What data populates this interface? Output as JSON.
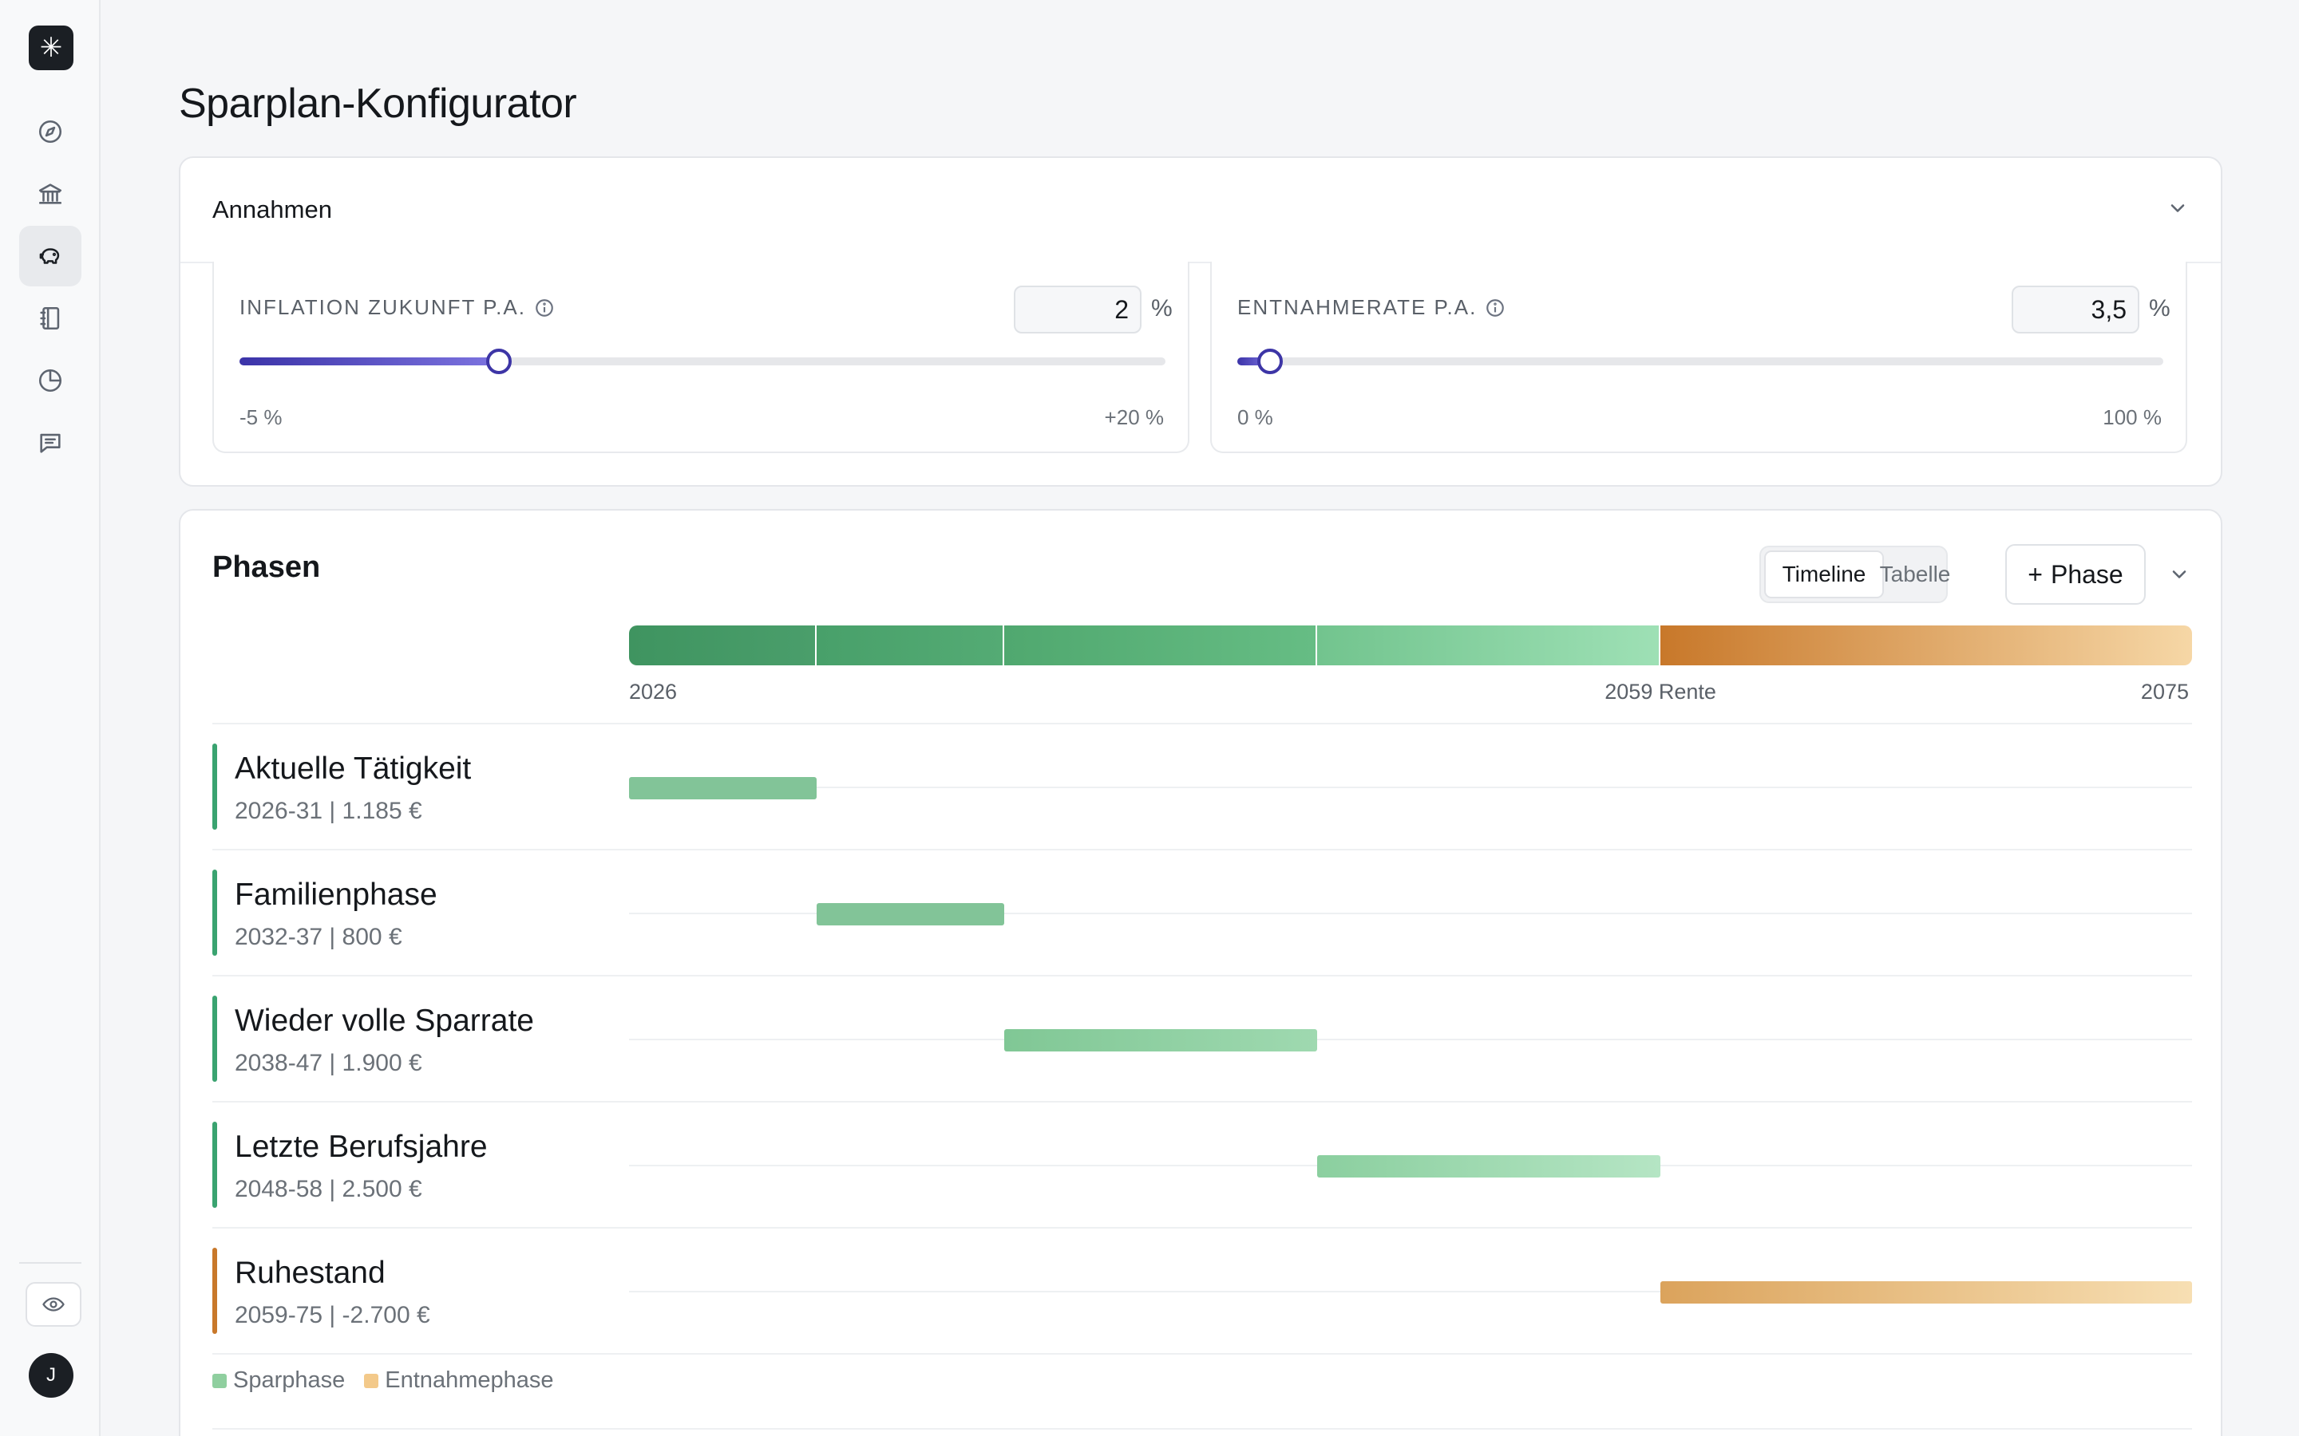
{
  "page": {
    "title": "Sparplan-Konfigurator"
  },
  "sidebar": {
    "logo": "✳",
    "items": [
      {
        "icon": "compass-icon"
      },
      {
        "icon": "bank-icon"
      },
      {
        "icon": "piggy-bank-icon",
        "active": true
      },
      {
        "icon": "notebook-icon"
      },
      {
        "icon": "pie-chart-icon"
      },
      {
        "icon": "message-icon"
      }
    ],
    "eye_icon": "eye-icon",
    "avatar_initial": "J"
  },
  "assumptions": {
    "title": "Annahmen",
    "inflation": {
      "label": "INFLATION ZUKUNFT P.A.",
      "value": "2",
      "unit": "%",
      "min_label": "-5 %",
      "max_label": "+20 %",
      "min": -5,
      "max": 20,
      "current": 2
    },
    "withdrawal": {
      "label": "ENTNAHMERATE P.A.",
      "value": "3,5",
      "unit": "%",
      "min_label": "0 %",
      "max_label": "100 %",
      "min": 0,
      "max": 100,
      "current": 3.5
    }
  },
  "phases": {
    "title": "Phasen",
    "view_toggle": {
      "timeline": "Timeline",
      "table": "Tabelle",
      "selected": "Timeline"
    },
    "add_button": "Phase",
    "timeline": {
      "start_label": "2026",
      "retirement_label": "2059 Rente",
      "end_label": "2075",
      "start_year": 2026,
      "end_year": 2075
    },
    "rows": [
      {
        "name": "Aktuelle Tätigkeit",
        "meta": "2026-31 | 1.185 €",
        "from": 2026,
        "to": 2032,
        "type": "save"
      },
      {
        "name": "Familienphase",
        "meta": "2032-37 | 800 €",
        "from": 2032,
        "to": 2038,
        "type": "save"
      },
      {
        "name": "Wieder volle Sparrate",
        "meta": "2038-47 | 1.900 €",
        "from": 2038,
        "to": 2048,
        "type": "save"
      },
      {
        "name": "Letzte Berufsjahre",
        "meta": "2048-58 | 2.500 €",
        "from": 2048,
        "to": 2059,
        "type": "save"
      },
      {
        "name": "Ruhestand",
        "meta": "2059-75 | -2.700 €",
        "from": 2059,
        "to": 2076,
        "type": "withdraw"
      }
    ],
    "legend": {
      "save": "Sparphase",
      "withdraw": "Entnahmephase"
    }
  },
  "colors": {
    "accent": "#3d35a6",
    "save_green": "#4a9e6b",
    "withdraw_orange": "#c8782a",
    "save_legend": "#8fcf9f",
    "withdraw_legend": "#f3c98a"
  }
}
